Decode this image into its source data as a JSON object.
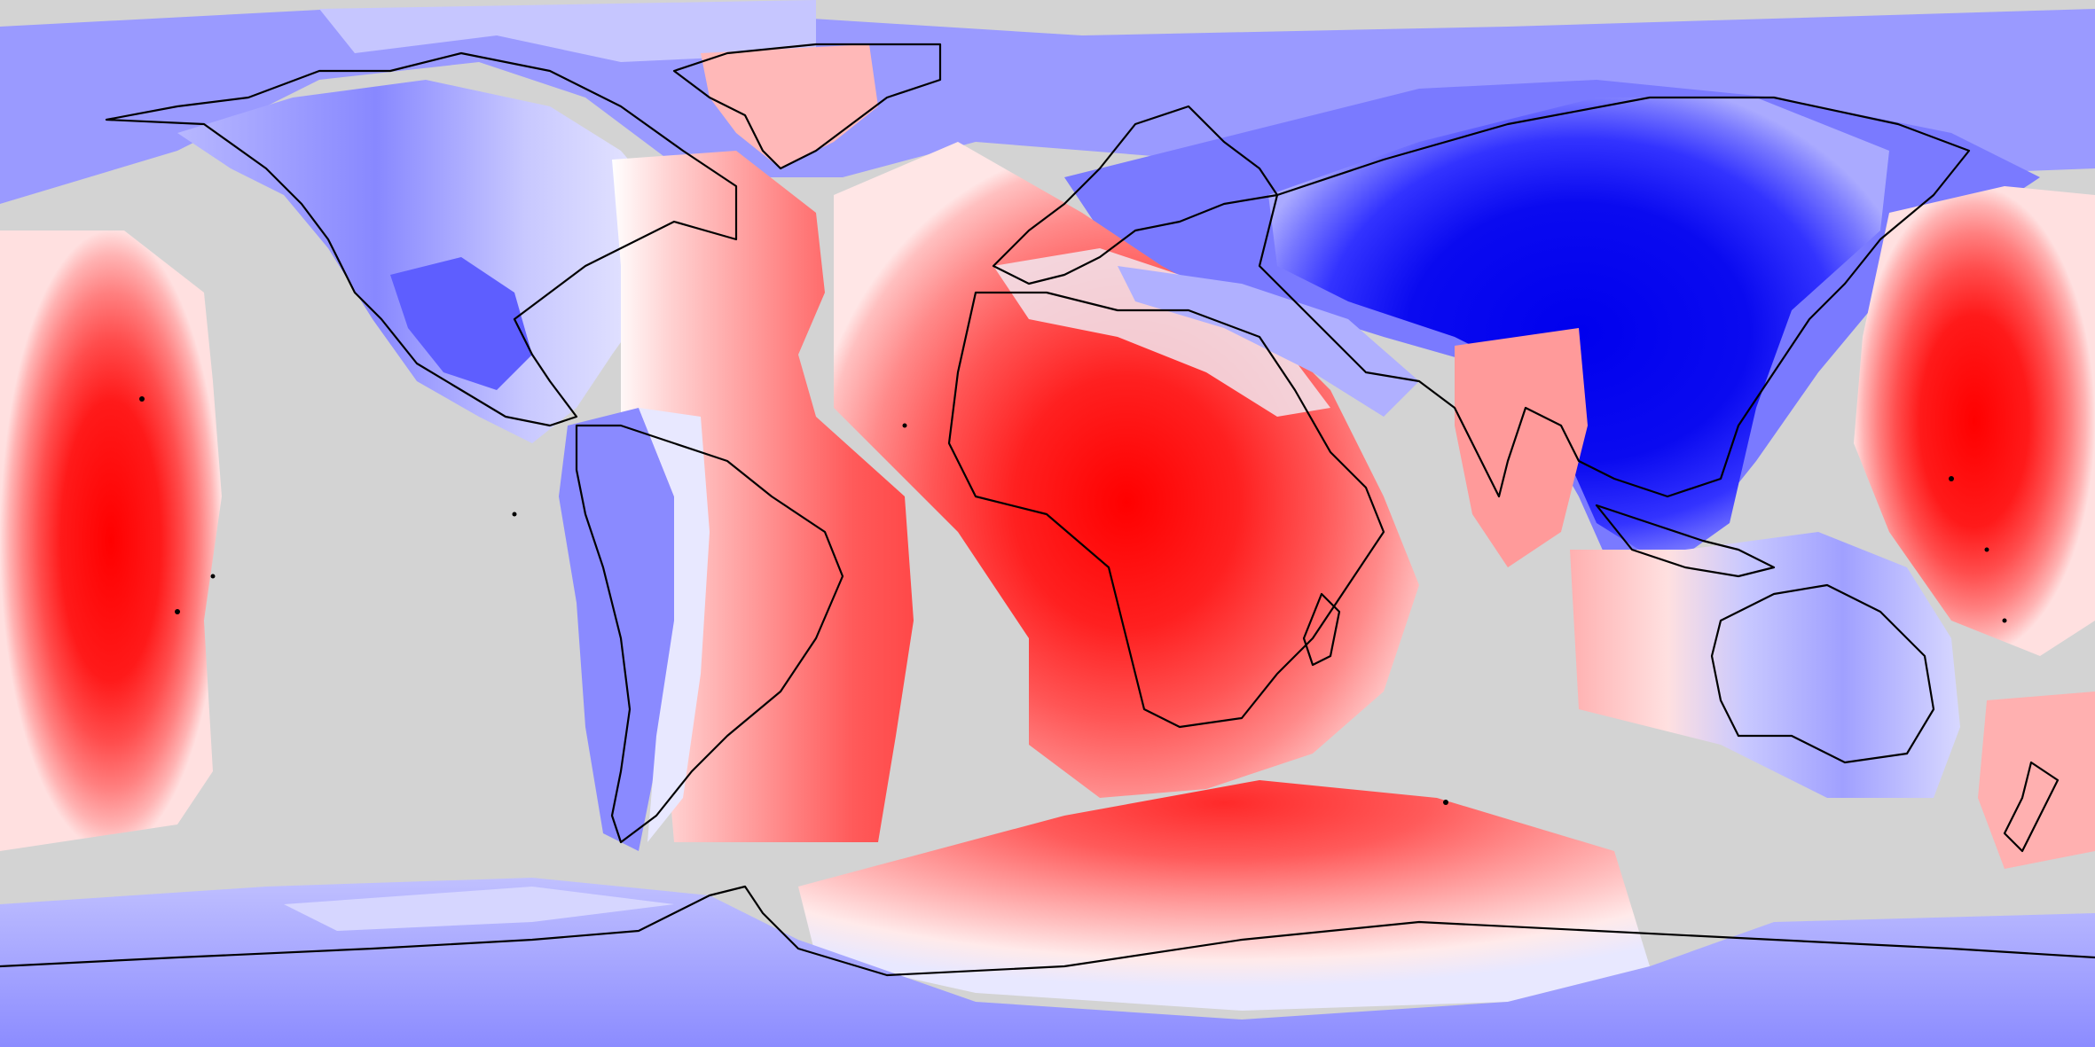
{
  "map": {
    "projection": "equirectangular",
    "background_color": "#d3d3d3",
    "coastline_color": "#000000",
    "positive_color": "#ff0000",
    "negative_color": "#0000ff",
    "neutral_color": "#ffffff",
    "legend": null
  }
}
